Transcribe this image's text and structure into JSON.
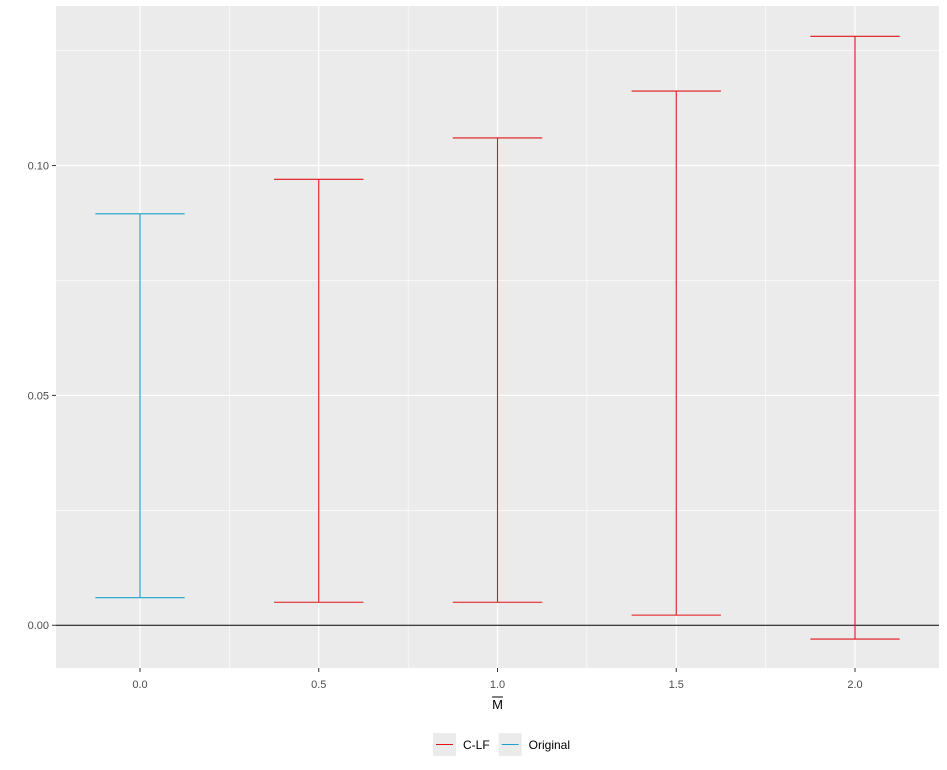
{
  "chart_data": {
    "type": "errorbar",
    "xlabel": "M",
    "xlabel_overline": true,
    "ylabel": "",
    "title": "",
    "xlim": [
      -0.235,
      2.235
    ],
    "ylim": [
      -0.0093,
      0.1347
    ],
    "x_ticks": [
      0.0,
      0.5,
      1.0,
      1.5,
      2.0
    ],
    "x_tick_labels": [
      "0.0",
      "0.5",
      "1.0",
      "1.5",
      "2.0"
    ],
    "y_ticks": [
      0.0,
      0.05,
      0.1
    ],
    "y_tick_labels": [
      "0.00",
      "0.05",
      "0.10"
    ],
    "hline": 0.0,
    "grid": true,
    "legend_position": "bottom",
    "series": [
      {
        "name": "C-LF",
        "color": "#F8766D",
        "stroke": "#e0151b",
        "points": [
          {
            "x": 0.5,
            "ymin": 0.005,
            "ymax": 0.097
          },
          {
            "x": 1.0,
            "ymin": 0.005,
            "ymax": 0.106
          },
          {
            "x": 1.5,
            "ymin": 0.0022,
            "ymax": 0.1162
          },
          {
            "x": 2.0,
            "ymin": -0.003,
            "ymax": 0.1281
          }
        ]
      },
      {
        "name": "Original",
        "color": "#00BFC4",
        "stroke": "#1ba1c9",
        "points": [
          {
            "x": 0.0,
            "ymin": 0.006,
            "ymax": 0.0895
          }
        ]
      }
    ]
  }
}
